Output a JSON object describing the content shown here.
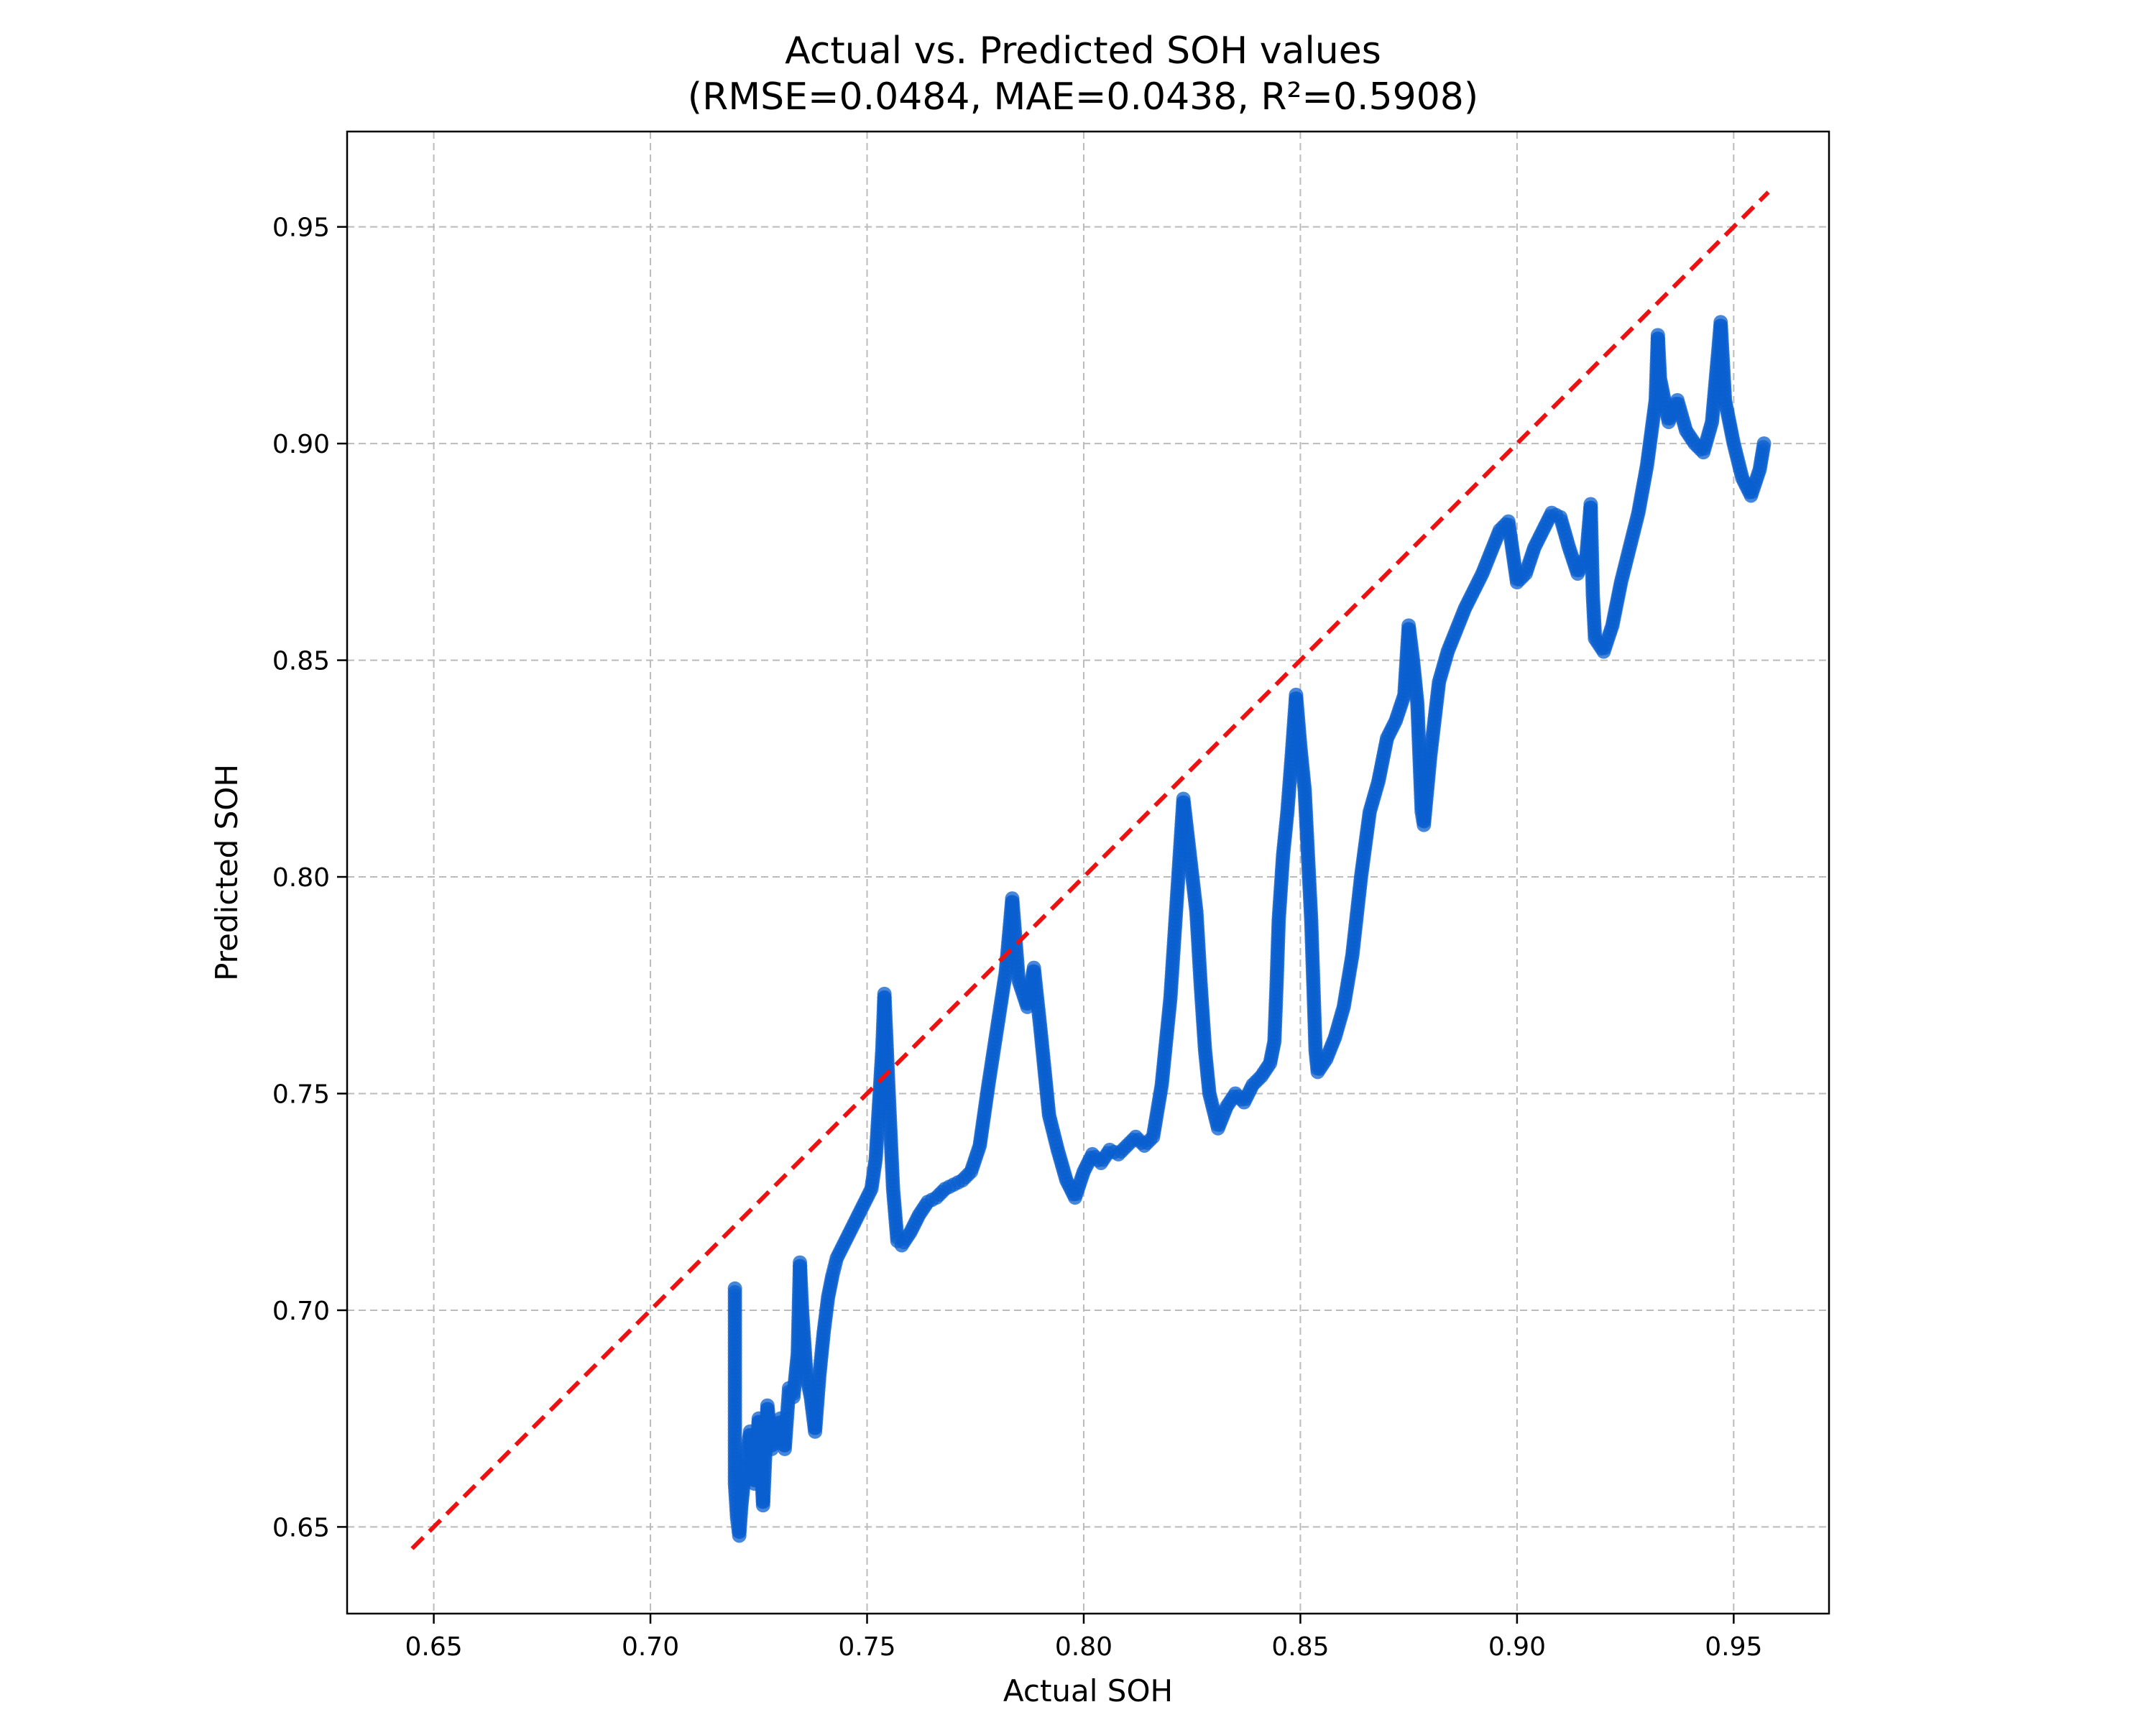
{
  "chart_data": {
    "type": "scatter",
    "title": "Actual vs. Predicted SOH values",
    "subtitle": "(RMSE=0.0484, MAE=0.0438,  R²=0.5908)",
    "xlabel": "Actual SOH",
    "ylabel": "Predicted SOH",
    "xlim": [
      0.63,
      0.972
    ],
    "ylim": [
      0.63,
      0.972
    ],
    "xticks": [
      "0.65",
      "0.70",
      "0.75",
      "0.80",
      "0.85",
      "0.90",
      "0.95"
    ],
    "yticks": [
      "0.65",
      "0.70",
      "0.75",
      "0.80",
      "0.85",
      "0.90",
      "0.95"
    ],
    "grid": true,
    "colors": {
      "points": "#0a5fcf",
      "reference_line": "#ee1111",
      "grid": "#bbbbbb"
    },
    "reference_line": {
      "style": "dashed",
      "from": [
        0.645,
        0.645
      ],
      "to": [
        0.958,
        0.958
      ]
    },
    "series": [
      {
        "marker": "circle",
        "points": [
          [
            0.7195,
            0.705
          ],
          [
            0.7195,
            0.69
          ],
          [
            0.7195,
            0.675
          ],
          [
            0.7195,
            0.66
          ],
          [
            0.72,
            0.652
          ],
          [
            0.7205,
            0.648
          ],
          [
            0.721,
            0.655
          ],
          [
            0.722,
            0.665
          ],
          [
            0.723,
            0.672
          ],
          [
            0.724,
            0.66
          ],
          [
            0.725,
            0.675
          ],
          [
            0.726,
            0.655
          ],
          [
            0.727,
            0.678
          ],
          [
            0.728,
            0.668
          ],
          [
            0.729,
            0.672
          ],
          [
            0.73,
            0.675
          ],
          [
            0.731,
            0.668
          ],
          [
            0.732,
            0.682
          ],
          [
            0.733,
            0.68
          ],
          [
            0.734,
            0.69
          ],
          [
            0.7345,
            0.711
          ],
          [
            0.735,
            0.7
          ],
          [
            0.736,
            0.685
          ],
          [
            0.737,
            0.68
          ],
          [
            0.738,
            0.672
          ],
          [
            0.739,
            0.685
          ],
          [
            0.74,
            0.695
          ],
          [
            0.741,
            0.703
          ],
          [
            0.742,
            0.708
          ],
          [
            0.743,
            0.712
          ],
          [
            0.745,
            0.716
          ],
          [
            0.747,
            0.72
          ],
          [
            0.749,
            0.724
          ],
          [
            0.751,
            0.728
          ],
          [
            0.752,
            0.735
          ],
          [
            0.7535,
            0.76
          ],
          [
            0.754,
            0.773
          ],
          [
            0.755,
            0.75
          ],
          [
            0.756,
            0.728
          ],
          [
            0.757,
            0.716
          ],
          [
            0.758,
            0.715
          ],
          [
            0.76,
            0.718
          ],
          [
            0.762,
            0.722
          ],
          [
            0.764,
            0.725
          ],
          [
            0.766,
            0.726
          ],
          [
            0.768,
            0.728
          ],
          [
            0.77,
            0.729
          ],
          [
            0.772,
            0.73
          ],
          [
            0.774,
            0.732
          ],
          [
            0.776,
            0.738
          ],
          [
            0.778,
            0.752
          ],
          [
            0.78,
            0.765
          ],
          [
            0.782,
            0.778
          ],
          [
            0.7835,
            0.795
          ],
          [
            0.785,
            0.776
          ],
          [
            0.787,
            0.77
          ],
          [
            0.7885,
            0.779
          ],
          [
            0.79,
            0.765
          ],
          [
            0.792,
            0.745
          ],
          [
            0.794,
            0.737
          ],
          [
            0.796,
            0.73
          ],
          [
            0.798,
            0.726
          ],
          [
            0.8,
            0.732
          ],
          [
            0.802,
            0.736
          ],
          [
            0.804,
            0.734
          ],
          [
            0.806,
            0.737
          ],
          [
            0.808,
            0.736
          ],
          [
            0.81,
            0.738
          ],
          [
            0.812,
            0.74
          ],
          [
            0.814,
            0.738
          ],
          [
            0.816,
            0.74
          ],
          [
            0.818,
            0.752
          ],
          [
            0.82,
            0.772
          ],
          [
            0.8215,
            0.795
          ],
          [
            0.823,
            0.818
          ],
          [
            0.8245,
            0.805
          ],
          [
            0.826,
            0.792
          ],
          [
            0.827,
            0.775
          ],
          [
            0.828,
            0.76
          ],
          [
            0.829,
            0.75
          ],
          [
            0.831,
            0.742
          ],
          [
            0.833,
            0.747
          ],
          [
            0.835,
            0.75
          ],
          [
            0.837,
            0.748
          ],
          [
            0.839,
            0.752
          ],
          [
            0.841,
            0.754
          ],
          [
            0.843,
            0.757
          ],
          [
            0.844,
            0.762
          ],
          [
            0.8445,
            0.775
          ],
          [
            0.845,
            0.79
          ],
          [
            0.846,
            0.805
          ],
          [
            0.847,
            0.815
          ],
          [
            0.848,
            0.828
          ],
          [
            0.849,
            0.842
          ],
          [
            0.85,
            0.83
          ],
          [
            0.851,
            0.82
          ],
          [
            0.852,
            0.8
          ],
          [
            0.8525,
            0.79
          ],
          [
            0.853,
            0.775
          ],
          [
            0.8535,
            0.76
          ],
          [
            0.854,
            0.755
          ],
          [
            0.856,
            0.758
          ],
          [
            0.858,
            0.763
          ],
          [
            0.86,
            0.77
          ],
          [
            0.862,
            0.782
          ],
          [
            0.864,
            0.8
          ],
          [
            0.866,
            0.815
          ],
          [
            0.868,
            0.822
          ],
          [
            0.87,
            0.832
          ],
          [
            0.872,
            0.836
          ],
          [
            0.874,
            0.842
          ],
          [
            0.875,
            0.858
          ],
          [
            0.876,
            0.85
          ],
          [
            0.877,
            0.84
          ],
          [
            0.878,
            0.815
          ],
          [
            0.8785,
            0.812
          ],
          [
            0.88,
            0.828
          ],
          [
            0.882,
            0.845
          ],
          [
            0.884,
            0.852
          ],
          [
            0.886,
            0.857
          ],
          [
            0.888,
            0.862
          ],
          [
            0.89,
            0.866
          ],
          [
            0.892,
            0.87
          ],
          [
            0.894,
            0.875
          ],
          [
            0.896,
            0.88
          ],
          [
            0.898,
            0.882
          ],
          [
            0.9,
            0.868
          ],
          [
            0.902,
            0.87
          ],
          [
            0.904,
            0.876
          ],
          [
            0.906,
            0.88
          ],
          [
            0.908,
            0.884
          ],
          [
            0.91,
            0.883
          ],
          [
            0.912,
            0.876
          ],
          [
            0.914,
            0.87
          ],
          [
            0.916,
            0.874
          ],
          [
            0.917,
            0.886
          ],
          [
            0.9175,
            0.865
          ],
          [
            0.918,
            0.855
          ],
          [
            0.92,
            0.852
          ],
          [
            0.922,
            0.858
          ],
          [
            0.924,
            0.868
          ],
          [
            0.926,
            0.876
          ],
          [
            0.928,
            0.884
          ],
          [
            0.93,
            0.895
          ],
          [
            0.932,
            0.91
          ],
          [
            0.9325,
            0.925
          ],
          [
            0.933,
            0.915
          ],
          [
            0.935,
            0.905
          ],
          [
            0.937,
            0.91
          ],
          [
            0.939,
            0.903
          ],
          [
            0.941,
            0.9
          ],
          [
            0.943,
            0.898
          ],
          [
            0.945,
            0.905
          ],
          [
            0.9465,
            0.922
          ],
          [
            0.947,
            0.928
          ],
          [
            0.948,
            0.91
          ],
          [
            0.95,
            0.9
          ],
          [
            0.952,
            0.892
          ],
          [
            0.954,
            0.888
          ],
          [
            0.956,
            0.894
          ],
          [
            0.957,
            0.9
          ]
        ]
      }
    ]
  }
}
